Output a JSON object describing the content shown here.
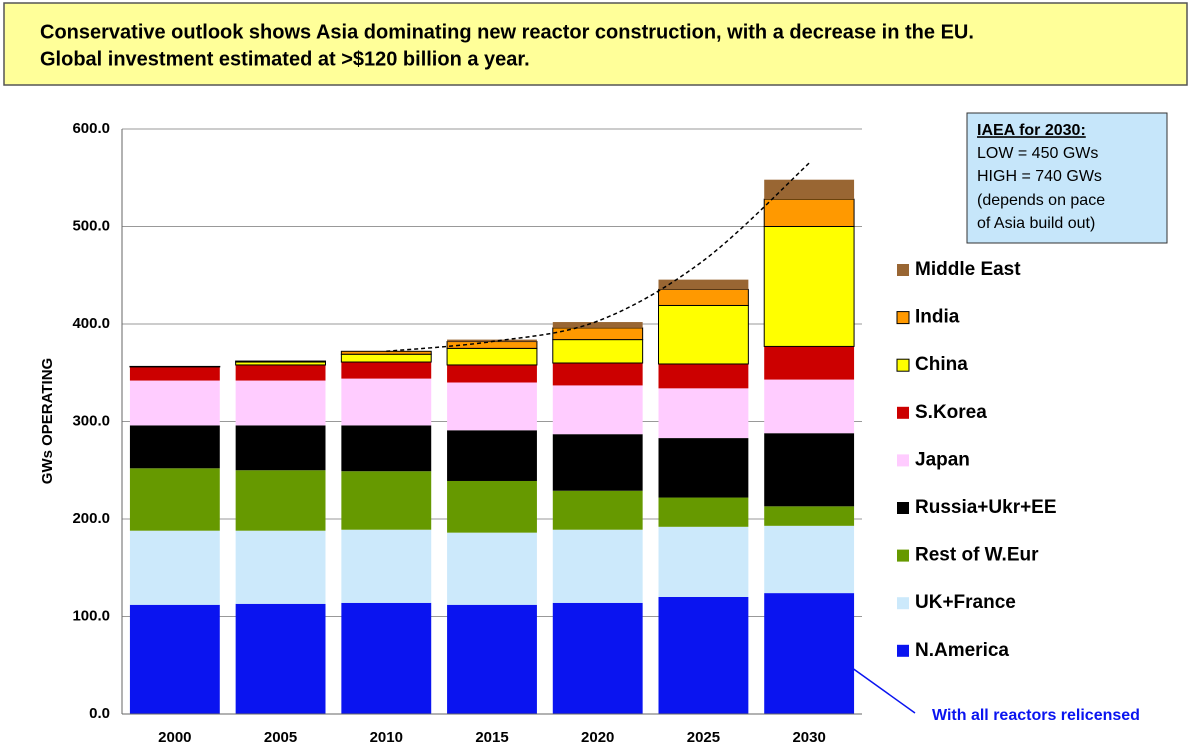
{
  "chart_data": {
    "type": "stacked_bar",
    "title": "Conservative outlook shows Asia dominating new reactor construction, with a decrease in the EU.",
    "subtitle": "Global investment estimated at >$120 billion a year.",
    "y_label": "GWs  OPERATING",
    "categories": [
      "2000",
      "2005",
      "2010",
      "2015",
      "2020",
      "2025",
      "2030"
    ],
    "series": [
      {
        "name": "N.America",
        "color": "#0a14f0",
        "values": [
          112,
          113,
          114,
          112,
          114,
          120,
          124
        ]
      },
      {
        "name": "UK+France",
        "color": "#cce9fb",
        "values": [
          76,
          75,
          75,
          74,
          75,
          72,
          69
        ]
      },
      {
        "name": "Rest of W.Eur",
        "color": "#669900",
        "values": [
          64,
          62,
          60,
          53,
          40,
          30,
          20
        ]
      },
      {
        "name": "Russia+Ukr+EE",
        "color": "#000000",
        "values": [
          44,
          46,
          47,
          52,
          58,
          61,
          75
        ]
      },
      {
        "name": "Japan",
        "color": "#ffccff",
        "values": [
          46,
          46,
          48,
          49,
          50,
          51,
          55
        ]
      },
      {
        "name": "S.Korea",
        "color": "#cc0000",
        "values": [
          14,
          16,
          17,
          18,
          23,
          25,
          34
        ]
      },
      {
        "name": "China",
        "color": "#ffff00",
        "outline": true,
        "values": [
          0.5,
          3,
          8,
          17,
          24,
          60,
          123
        ]
      },
      {
        "name": "India",
        "color": "#ff9900",
        "outline": true,
        "values": [
          0,
          1,
          3,
          7,
          12,
          16.5,
          28
        ]
      },
      {
        "name": "Middle East",
        "color": "#996633",
        "values": [
          0,
          0,
          0,
          2,
          6,
          10,
          20
        ]
      }
    ],
    "trend": {
      "style": "dashed",
      "color": "#000000",
      "values": [
        null,
        null,
        372,
        382,
        403,
        465,
        565
      ]
    },
    "ylim": [
      0,
      600
    ],
    "yticks": [
      {
        "value": 0,
        "label": "0.0"
      },
      {
        "value": 100,
        "label": "100.0"
      },
      {
        "value": 200,
        "label": "200.0"
      },
      {
        "value": 300,
        "label": "300.0"
      },
      {
        "value": 400,
        "label": "400.0"
      },
      {
        "value": 500,
        "label": "500.0"
      },
      {
        "value": 600,
        "label": "600.0"
      }
    ],
    "grid": true,
    "legend": "right",
    "note": [
      "IAEA for 2030:",
      "LOW = 450 GWs",
      "HIGH = 740 GWs",
      "(depends on pace",
      "of Asia build out)"
    ],
    "annotation": "With all reactors relicensed"
  }
}
